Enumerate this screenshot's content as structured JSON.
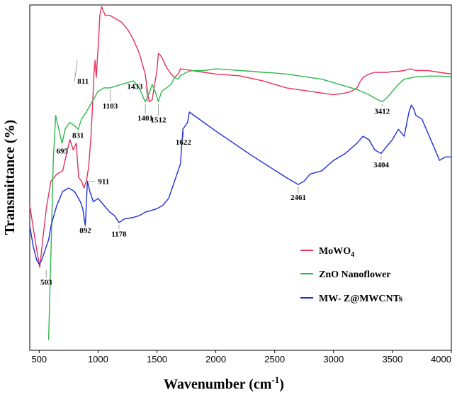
{
  "chart_data": {
    "type": "line",
    "title": "",
    "xlabel_main": "Wavenumber (cm",
    "xlabel_sup": "-1",
    "xlabel_close": ")",
    "ylabel": "Transmittance (%)",
    "xlim": [
      420,
      4000
    ],
    "ylim": [
      0,
      100
    ],
    "xticks": [
      500,
      1000,
      1500,
      2000,
      2500,
      3000,
      3500,
      4000
    ],
    "yticks_shown": false,
    "grid": false,
    "legend_position": "lower-right",
    "series": [
      {
        "name_main": "MoWO",
        "name_sub": "4",
        "color": "#e8315a",
        "x": [
          420,
          470,
          505,
          530,
          560,
          600,
          650,
          700,
          740,
          760,
          790,
          815,
          835,
          860,
          880,
          900,
          920,
          940,
          955,
          965,
          975,
          985,
          995,
          1005,
          1015,
          1030,
          1060,
          1100,
          1150,
          1200,
          1250,
          1300,
          1350,
          1400,
          1433,
          1460,
          1480,
          1500,
          1512,
          1540,
          1580,
          1620,
          1650,
          1680,
          1700,
          1800,
          1900,
          2000,
          2200,
          2400,
          2600,
          2800,
          3000,
          3100,
          3150,
          3200,
          3220,
          3250,
          3300,
          3350,
          3400,
          3450,
          3500,
          3550,
          3600,
          3650,
          3700,
          3800,
          3900,
          4000
        ],
        "y": [
          42,
          31,
          24,
          32,
          41,
          49,
          51,
          52,
          58,
          61,
          58,
          60,
          50,
          49,
          47,
          49,
          53,
          62,
          72,
          80,
          84,
          79,
          85,
          90,
          97,
          99.5,
          97,
          97,
          96,
          95,
          93,
          90,
          86,
          80,
          72,
          72.5,
          77,
          81,
          86,
          85,
          82,
          80,
          79,
          80,
          81.5,
          81,
          80.5,
          80,
          79.5,
          78,
          76,
          75,
          74,
          74.5,
          75,
          76,
          77.5,
          79,
          80,
          80.5,
          80.5,
          80.5,
          80.7,
          80.8,
          81,
          81.5,
          81,
          81,
          80.5,
          80
        ]
      },
      {
        "name_main": "ZnO Nanoflower",
        "name_sub": "",
        "color": "#2db84d",
        "x": [
          580,
          600,
          620,
          640,
          660,
          680,
          695,
          720,
          760,
          800,
          831,
          860,
          900,
          950,
          1000,
          1050,
          1103,
          1150,
          1200,
          1250,
          1300,
          1350,
          1380,
          1401,
          1430,
          1460,
          1490,
          1512,
          1540,
          1580,
          1620,
          1650,
          1680,
          1700,
          1750,
          1800,
          1900,
          2000,
          2100,
          2200,
          2300,
          2400,
          2500,
          2600,
          2700,
          2800,
          2900,
          3000,
          3100,
          3200,
          3300,
          3350,
          3380,
          3412,
          3450,
          3500,
          3550,
          3600,
          3700,
          3800,
          3900,
          4000
        ],
        "y": [
          3,
          28,
          55,
          68,
          65,
          62,
          60,
          64,
          66,
          65,
          64,
          67,
          69,
          72,
          75,
          76,
          76,
          76.5,
          77,
          77.5,
          78,
          76,
          73.5,
          72,
          74,
          77,
          74.5,
          72,
          75,
          76,
          77,
          79,
          78.5,
          79.5,
          80.5,
          81,
          81,
          81.5,
          81.3,
          81,
          80.8,
          80.5,
          80.3,
          80,
          79.5,
          79,
          78.5,
          77.5,
          76.5,
          75.5,
          74,
          73,
          72.5,
          72,
          73,
          75,
          77,
          78.5,
          79.2,
          79.4,
          79.4,
          79.2
        ]
      },
      {
        "name_main": "MW- Z@MWCNTs",
        "name_sub": "",
        "color": "#1f2fd6",
        "x": [
          420,
          450,
          480,
          500,
          520,
          550,
          580,
          600,
          650,
          700,
          750,
          800,
          850,
          870,
          892,
          910,
          930,
          960,
          1000,
          1050,
          1100,
          1140,
          1178,
          1220,
          1300,
          1350,
          1400,
          1450,
          1500,
          1550,
          1600,
          1650,
          1700,
          1720,
          1740,
          1760,
          1775,
          2000,
          2300,
          2600,
          2700,
          2750,
          2800,
          2900,
          3000,
          3100,
          3200,
          3250,
          3300,
          3350,
          3404,
          3450,
          3500,
          3550,
          3600,
          3640,
          3660,
          3680,
          3700,
          3750,
          3800,
          3850,
          3900,
          3950,
          4000
        ],
        "y": [
          36,
          30,
          26,
          25,
          26,
          29,
          32,
          36,
          42,
          46,
          47,
          46,
          43,
          41,
          36,
          49,
          46,
          43,
          44,
          42,
          40,
          39,
          37,
          38,
          38.5,
          39,
          40,
          40.5,
          41,
          42,
          44,
          49,
          54,
          64,
          65,
          66,
          69,
          63.5,
          56.5,
          50,
          48,
          49,
          51,
          52,
          55,
          57,
          60,
          62,
          61,
          58,
          57,
          59,
          61,
          64,
          62,
          69,
          71,
          70,
          68,
          67,
          63,
          59,
          55,
          56,
          56
        ]
      }
    ],
    "annotations": [
      {
        "label": "503",
        "series": 0,
        "x": 503,
        "y": 24,
        "text_x": 560,
        "text_y": 19,
        "dir": "below"
      },
      {
        "label": "811",
        "series": 0,
        "x": 811,
        "y": 84,
        "text_x": 825,
        "text_y": 78,
        "dir": "right"
      },
      {
        "label": "911",
        "series": 0,
        "x": 911,
        "y": 49,
        "text_x": 1000,
        "text_y": 49,
        "dir": "right"
      },
      {
        "label": "1433",
        "series": 0,
        "x": 1433,
        "y": 72,
        "text_x": 1380,
        "text_y": 76.5,
        "dir": "left"
      },
      {
        "label": "695",
        "series": 1,
        "x": 695,
        "y": 60,
        "text_x": 695,
        "text_y": 57,
        "dir": "below"
      },
      {
        "label": "831",
        "series": 1,
        "x": 831,
        "y": 64,
        "text_x": 831,
        "text_y": 61.5,
        "dir": "below"
      },
      {
        "label": "1103",
        "series": 1,
        "x": 1103,
        "y": 76,
        "text_x": 1103,
        "text_y": 70,
        "dir": "below"
      },
      {
        "label": "1401",
        "series": 1,
        "x": 1401,
        "y": 72,
        "text_x": 1401,
        "text_y": 66.5,
        "dir": "below"
      },
      {
        "label": "1512",
        "series": 1,
        "x": 1512,
        "y": 72,
        "text_x": 1512,
        "text_y": 66,
        "dir": "below"
      },
      {
        "label": "3412",
        "series": 1,
        "x": 3412,
        "y": 72,
        "text_x": 3412,
        "text_y": 68.5,
        "dir": "below"
      },
      {
        "label": "892",
        "series": 2,
        "x": 892,
        "y": 36,
        "text_x": 892,
        "text_y": 34,
        "dir": "below"
      },
      {
        "label": "1178",
        "series": 2,
        "x": 1178,
        "y": 37,
        "text_x": 1178,
        "text_y": 33,
        "dir": "below"
      },
      {
        "label": "1622",
        "series": 2,
        "x": 1622,
        "y": 64,
        "text_x": 1725,
        "text_y": 59.5,
        "dir": "below"
      },
      {
        "label": "2461",
        "series": 2,
        "x": 2461,
        "y": 48,
        "text_x": 2700,
        "text_y": 43.5,
        "dir": "below"
      },
      {
        "label": "3404",
        "series": 2,
        "x": 3404,
        "y": 57,
        "text_x": 3404,
        "text_y": 53,
        "dir": "below"
      }
    ]
  }
}
